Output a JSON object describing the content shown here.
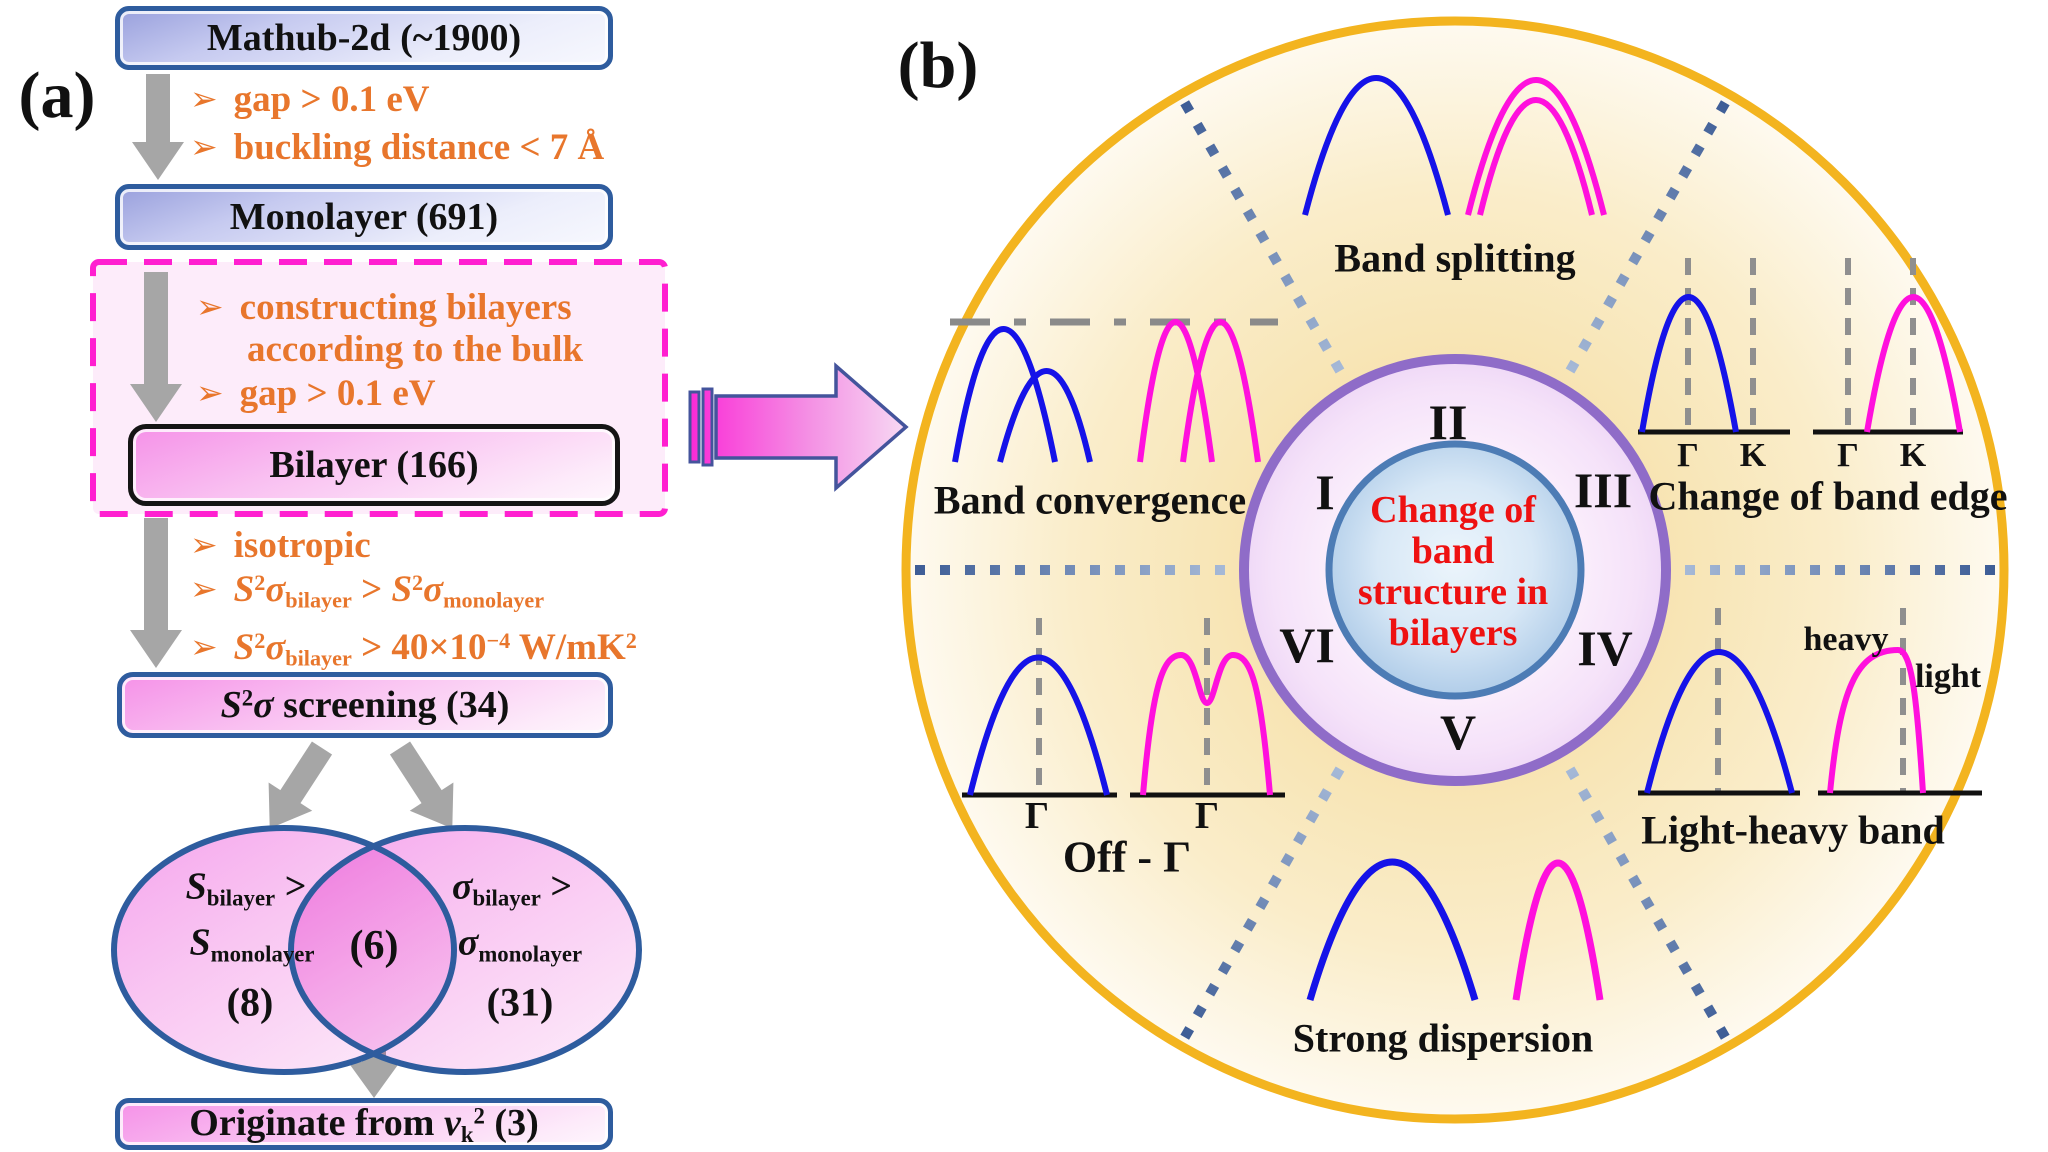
{
  "panel_a": {
    "label": "(a)",
    "boxes": {
      "mathub": "Mathub-2d (~1900)",
      "monolayer": "Monolayer (691)",
      "bilayer": "Bilayer (166)",
      "screening": [
        {
          "t": "S",
          "s": "i"
        },
        {
          "t": "2",
          "s": "sup"
        },
        {
          "t": "σ",
          "s": "i"
        },
        {
          "t": " screening (34)"
        }
      ],
      "originate": [
        {
          "t": "Originate from "
        },
        {
          "t": "ν",
          "s": "i"
        },
        {
          "t": "k",
          "s": "sub"
        },
        {
          "t": "2",
          "s": "sup"
        },
        {
          "t": " (3)"
        }
      ]
    },
    "bullet_glyph": "➢",
    "bullets": {
      "gap1": "gap > 0.1 eV",
      "buckling": "buckling distance < 7 Å",
      "constructing1": "constructing bilayers",
      "constructing2": "according to the bulk",
      "gap2": "gap > 0.1 eV",
      "isotropic": "isotropic",
      "power1": [
        {
          "t": "S",
          "s": "i"
        },
        {
          "t": "2",
          "s": "sup"
        },
        {
          "t": "σ",
          "s": "i"
        },
        {
          "t": "bilayer",
          "s": "sub"
        },
        {
          "t": " > "
        },
        {
          "t": "S",
          "s": "i"
        },
        {
          "t": "2",
          "s": "sup"
        },
        {
          "t": "σ",
          "s": "i"
        },
        {
          "t": "monolayer",
          "s": "sub"
        }
      ],
      "power2": [
        {
          "t": "S",
          "s": "i"
        },
        {
          "t": "2",
          "s": "sup"
        },
        {
          "t": "σ",
          "s": "i"
        },
        {
          "t": "bilayer",
          "s": "sub"
        },
        {
          "t": " > 40×10"
        },
        {
          "t": "−4",
          "s": "sup"
        },
        {
          "t": " W/mK"
        },
        {
          "t": "2",
          "s": "sup"
        }
      ]
    },
    "venn": {
      "left_line1": [
        {
          "t": "S",
          "s": "i"
        },
        {
          "t": "bilayer",
          "s": "sub"
        },
        {
          "t": " >"
        }
      ],
      "left_line2": [
        {
          "t": "S",
          "s": "i"
        },
        {
          "t": "monolayer",
          "s": "sub"
        }
      ],
      "left_count": "(8)",
      "right_line1": [
        {
          "t": "σ",
          "s": "i"
        },
        {
          "t": "bilayer",
          "s": "sub"
        },
        {
          "t": " >"
        }
      ],
      "right_line2": [
        {
          "t": "σ",
          "s": "i"
        },
        {
          "t": "monolayer",
          "s": "sub"
        }
      ],
      "right_count": "(31)",
      "intersection_count": "(6)"
    }
  },
  "panel_b": {
    "label": "(b)",
    "center_text": {
      "line1": "Change of",
      "line2": "band",
      "line3": "structure in",
      "line4": "bilayers"
    },
    "numerals": {
      "n1": "I",
      "n2": "II",
      "n3": "III",
      "n4": "IV",
      "n5": "V",
      "n6": "VI"
    },
    "sector_labels": {
      "band_splitting": "Band splitting",
      "band_convergence": "Band convergence",
      "change_of_band_edge": "Change of band edge",
      "light_heavy_band": "Light-heavy band",
      "off_gamma": "Off - Γ",
      "strong_dispersion": "Strong dispersion"
    },
    "plot_labels": {
      "gamma": "Γ",
      "k": "K",
      "heavy": "heavy",
      "light": "light"
    }
  },
  "colors": {
    "orange_text": "#E8762C",
    "box_border_blue": "#2E5C9E",
    "dashed_magenta": "#FF1FD0",
    "gold_circle": "#F3B41F",
    "blue_curve": "#1512E8",
    "magenta_curve": "#FF10DD",
    "red_center_text": "#EE1111",
    "ring_purple": "#8F6CC8",
    "inner_circle_border": "#4D7CB5",
    "gray_arrow": "#A6A6A6"
  }
}
